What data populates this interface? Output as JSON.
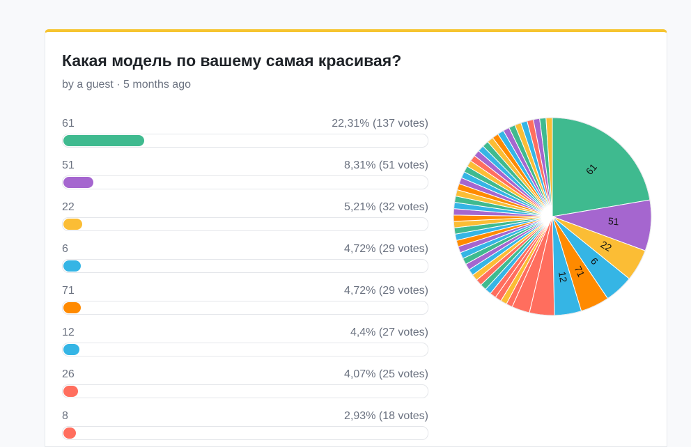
{
  "poll": {
    "title": "Какая модель по вашему самая красивая?",
    "meta": "by a guest · 5 months ago"
  },
  "options": [
    {
      "label": "61",
      "stat": "22,31% (137 votes)",
      "percent": 22.31,
      "color": "#3fba8f"
    },
    {
      "label": "51",
      "stat": "8,31% (51 votes)",
      "percent": 8.31,
      "color": "#a566cf"
    },
    {
      "label": "22",
      "stat": "5,21% (32 votes)",
      "percent": 5.21,
      "color": "#fbbd35"
    },
    {
      "label": "6",
      "stat": "4,72% (29 votes)",
      "percent": 4.72,
      "color": "#35b5e5"
    },
    {
      "label": "71",
      "stat": "4,72% (29 votes)",
      "percent": 4.72,
      "color": "#ff8a00"
    },
    {
      "label": "12",
      "stat": "4,4% (27 votes)",
      "percent": 4.4,
      "color": "#35b5e5"
    },
    {
      "label": "26",
      "stat": "4,07% (25 votes)",
      "percent": 4.07,
      "color": "#ff6e5e"
    },
    {
      "label": "8",
      "stat": "2,93% (18 votes)",
      "percent": 2.93,
      "color": "#ff6e5e"
    }
  ],
  "pie_remaining_slices": {
    "colors": [
      "#ff6e5e",
      "#fbbd35",
      "#ff6e5e",
      "#ff6e5e",
      "#35b5e5",
      "#3fba8f",
      "#ff6e5e",
      "#fbbd35",
      "#35b5e5",
      "#a566cf",
      "#3fba8f",
      "#35b5e5",
      "#a566cf",
      "#ff8a00",
      "#35b5e5",
      "#3fba8f",
      "#fbbd35",
      "#ff8a00",
      "#a566cf",
      "#35b5e5",
      "#3fba8f",
      "#fbbd35",
      "#ff8a00",
      "#a566cf",
      "#35b5e5",
      "#3fba8f",
      "#fbbd35",
      "#ff6e5e",
      "#a566cf",
      "#35b5e5",
      "#3fba8f",
      "#fbbd35",
      "#ff8a00",
      "#35b5e5",
      "#a566cf",
      "#3fba8f",
      "#fbbd35",
      "#35b5e5",
      "#ff6e5e",
      "#a566cf",
      "#3fba8f",
      "#fbbd35"
    ]
  },
  "colors": {
    "accent_top": "#f6c430",
    "track_border": "#e4e6ea",
    "pie_remainder": "#e6e7ea"
  }
}
